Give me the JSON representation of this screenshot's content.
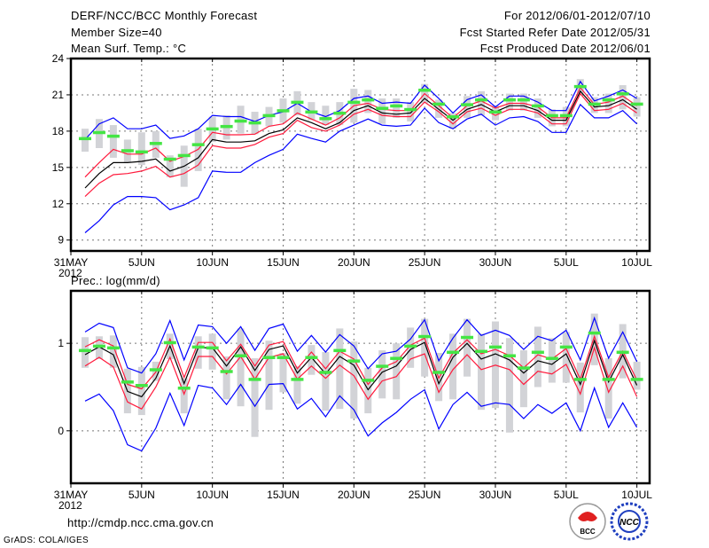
{
  "header": {
    "title": "DERF/NCC/BCC Monthly Forecast",
    "member_size": "Member Size=40",
    "variable": "Mean Surf. Temp.: °C",
    "period": "For 2012/06/01-2012/07/10",
    "start_date": "Fcst Started Refer Date 2012/05/31",
    "produced_date": "Fcst Produced Date 2012/06/01"
  },
  "footer": {
    "url": "http://cmdp.ncc.cma.gov.cn",
    "credit": "GrADS: COLA/IGES",
    "logo_left": "BCC",
    "logo_right": "NCC"
  },
  "colors": {
    "max_min": "#0000ff",
    "quartile": "#ff1a3c",
    "median": "#000000",
    "obs": "#44e544",
    "box": "#d2d3d7"
  },
  "chart_data": [
    {
      "type": "line",
      "title": "Mean Surf. Temp.: °C",
      "ylabel": "°C",
      "ylim": [
        8.1,
        24
      ],
      "xlim": [
        0,
        40.9
      ],
      "yticks": [
        9,
        12,
        15,
        18,
        21,
        24
      ],
      "xticks": [
        {
          "day": 0,
          "label": "31MAY",
          "sub": "2012"
        },
        {
          "day": 5,
          "label": "5JUN"
        },
        {
          "day": 10,
          "label": "10JUN"
        },
        {
          "day": 15,
          "label": "15JUN"
        },
        {
          "day": 20,
          "label": "20JUN"
        },
        {
          "day": 25,
          "label": "25JUN"
        },
        {
          "day": 30,
          "label": "30JUN"
        },
        {
          "day": 35,
          "label": "5JUL"
        },
        {
          "day": 40,
          "label": "10JUL"
        }
      ],
      "grid": true,
      "x_days": [
        1,
        2,
        3,
        4,
        5,
        6,
        7,
        8,
        9,
        10,
        11,
        12,
        13,
        14,
        15,
        16,
        17,
        18,
        19,
        20,
        21,
        22,
        23,
        24,
        25,
        26,
        27,
        28,
        29,
        30,
        31,
        32,
        33,
        34,
        35,
        36,
        37,
        38,
        39,
        40
      ],
      "series": [
        {
          "name": "max",
          "color": "#0000ff",
          "values": [
            17.3,
            18.6,
            19.1,
            18.2,
            18.2,
            18.5,
            17.4,
            17.6,
            18.2,
            19.3,
            19.2,
            19.2,
            18.8,
            19.3,
            19.6,
            20.3,
            19.6,
            19.2,
            19.7,
            20.7,
            20.9,
            20.3,
            20.4,
            20.3,
            21.8,
            20.7,
            19.5,
            20.6,
            21.0,
            20.0,
            20.9,
            20.9,
            20.4,
            19.7,
            19.7,
            22.1,
            20.5,
            20.9,
            21.4,
            20.7
          ]
        },
        {
          "name": "upper",
          "color": "#ff1a3c",
          "values": [
            14.2,
            15.4,
            16.5,
            16.1,
            16.1,
            16.6,
            15.5,
            15.9,
            16.5,
            17.9,
            17.7,
            17.7,
            17.75,
            18.4,
            18.6,
            19.5,
            19.0,
            18.5,
            19.1,
            20.1,
            20.3,
            19.8,
            19.7,
            19.7,
            21.1,
            20.1,
            19.1,
            20.1,
            20.5,
            19.9,
            20.3,
            20.3,
            20.0,
            19.1,
            19.1,
            21.6,
            20.2,
            20.4,
            20.9,
            20.1
          ]
        },
        {
          "name": "median",
          "color": "#000000",
          "values": [
            13.3,
            14.5,
            15.4,
            15.4,
            15.5,
            15.7,
            14.7,
            15.1,
            15.8,
            17.3,
            17.1,
            17.1,
            17.2,
            17.8,
            18.1,
            19.1,
            18.7,
            18.2,
            18.7,
            19.7,
            20.1,
            19.5,
            19.4,
            19.5,
            20.7,
            19.8,
            18.9,
            19.8,
            20.2,
            19.6,
            20.1,
            20.1,
            19.7,
            18.9,
            18.9,
            21.3,
            20.0,
            20.1,
            20.6,
            19.8
          ]
        },
        {
          "name": "lower",
          "color": "#ff1a3c",
          "values": [
            12.6,
            13.7,
            14.4,
            14.5,
            14.7,
            15.1,
            14.2,
            14.5,
            15.2,
            16.8,
            16.6,
            16.6,
            16.9,
            17.5,
            17.8,
            18.9,
            18.3,
            18.0,
            18.5,
            19.4,
            19.8,
            19.3,
            19.2,
            19.2,
            20.4,
            19.6,
            18.6,
            19.6,
            19.9,
            19.3,
            19.8,
            19.8,
            19.5,
            18.6,
            18.6,
            21.1,
            19.7,
            19.8,
            20.3,
            19.5
          ]
        },
        {
          "name": "min",
          "color": "#0000ff",
          "values": [
            9.6,
            10.6,
            11.9,
            12.6,
            12.6,
            12.5,
            11.5,
            11.9,
            12.5,
            14.7,
            14.6,
            14.6,
            15.4,
            16.0,
            16.5,
            17.75,
            17.4,
            17.1,
            18.0,
            18.5,
            19.0,
            18.5,
            18.4,
            18.5,
            19.9,
            18.7,
            18.2,
            19.0,
            19.4,
            18.5,
            19.1,
            19.2,
            18.8,
            17.9,
            17.9,
            20.2,
            19.1,
            19.1,
            19.7,
            18.6
          ]
        }
      ],
      "obs": [
        17.4,
        17.9,
        17.6,
        16.4,
        16.3,
        17.0,
        15.7,
        16.0,
        16.9,
        18.2,
        18.4,
        18.85,
        18.7,
        19.3,
        19.7,
        20.4,
        19.6,
        19.05,
        19.5,
        20.4,
        20.6,
        19.9,
        20.1,
        19.8,
        21.4,
        20.25,
        19.2,
        20.2,
        20.6,
        19.6,
        20.6,
        20.6,
        20.1,
        19.3,
        19.3,
        21.7,
        20.25,
        20.6,
        21.1,
        20.25
      ],
      "box_high": [
        18.2,
        19.0,
        18.5,
        17.3,
        17.9,
        18.0,
        16.0,
        16.8,
        18.2,
        19.2,
        19.3,
        20.1,
        19.6,
        20.0,
        20.7,
        21.3,
        20.4,
        20.1,
        20.4,
        21.5,
        21.4,
        20.7,
        20.7,
        20.4,
        21.9,
        20.6,
        19.5,
        20.9,
        21.3,
        20.1,
        21.1,
        21.1,
        20.7,
        19.8,
        20.0,
        22.3,
        20.8,
        21.1,
        21.8,
        20.8
      ],
      "box_low": [
        16.3,
        16.6,
        15.8,
        15.4,
        15.2,
        15.8,
        14.2,
        13.4,
        14.7,
        17.1,
        17.3,
        17.8,
        17.75,
        18.4,
        18.7,
        19.3,
        18.9,
        18.5,
        18.5,
        18.7,
        19.5,
        18.6,
        19.1,
        18.8,
        20.3,
        19.1,
        18.2,
        19.1,
        19.3,
        18.9,
        19.7,
        19.7,
        19.1,
        18.4,
        18.4,
        21.1,
        19.5,
        19.5,
        19.8,
        19.2
      ]
    },
    {
      "type": "line",
      "title": "Prec.: log(mm/d)",
      "ylabel": "log(mm/d)",
      "ylim": [
        -0.6,
        1.6
      ],
      "xlim": [
        0,
        40.9
      ],
      "yticks": [
        0,
        1
      ],
      "xticks": [
        {
          "day": 0,
          "label": "31MAY",
          "sub": "2012"
        },
        {
          "day": 5,
          "label": "5JUN"
        },
        {
          "day": 10,
          "label": "10JUN"
        },
        {
          "day": 15,
          "label": "15JUN"
        },
        {
          "day": 20,
          "label": "20JUN"
        },
        {
          "day": 25,
          "label": "25JUN"
        },
        {
          "day": 30,
          "label": "30JUN"
        },
        {
          "day": 35,
          "label": "5JUL"
        },
        {
          "day": 40,
          "label": "10JUL"
        }
      ],
      "grid": true,
      "x_days": [
        1,
        2,
        3,
        4,
        5,
        6,
        7,
        8,
        9,
        10,
        11,
        12,
        13,
        14,
        15,
        16,
        17,
        18,
        19,
        20,
        21,
        22,
        23,
        24,
        25,
        26,
        27,
        28,
        29,
        30,
        31,
        32,
        33,
        34,
        35,
        36,
        37,
        38,
        39,
        40
      ],
      "series": [
        {
          "name": "max",
          "color": "#0000ff",
          "values": [
            1.13,
            1.23,
            1.18,
            0.72,
            0.66,
            0.88,
            1.26,
            0.81,
            1.21,
            1.19,
            1.0,
            1.19,
            0.92,
            1.17,
            1.22,
            0.91,
            1.09,
            0.9,
            1.1,
            0.97,
            0.71,
            0.88,
            0.91,
            1.05,
            1.27,
            0.8,
            1.06,
            1.27,
            1.09,
            1.15,
            1.09,
            0.93,
            1.08,
            1.03,
            1.15,
            0.81,
            1.29,
            0.83,
            1.13,
            0.79
          ]
        },
        {
          "name": "upper",
          "color": "#ff1a3c",
          "values": [
            0.96,
            1.04,
            0.97,
            0.53,
            0.48,
            0.67,
            1.05,
            0.61,
            1.01,
            1.01,
            0.8,
            0.99,
            0.74,
            0.98,
            1.02,
            0.71,
            0.9,
            0.71,
            0.91,
            0.82,
            0.53,
            0.72,
            0.79,
            0.98,
            1.06,
            0.6,
            0.89,
            1.04,
            0.88,
            0.93,
            0.86,
            0.72,
            0.87,
            0.82,
            0.94,
            0.59,
            1.08,
            0.61,
            0.91,
            0.58
          ]
        },
        {
          "name": "median",
          "color": "#000000",
          "values": [
            0.87,
            0.96,
            0.87,
            0.45,
            0.39,
            0.6,
            0.97,
            0.54,
            0.95,
            0.95,
            0.74,
            0.96,
            0.69,
            0.93,
            0.97,
            0.66,
            0.84,
            0.65,
            0.85,
            0.75,
            0.47,
            0.67,
            0.74,
            0.93,
            1.01,
            0.54,
            0.84,
            1.0,
            0.82,
            0.88,
            0.81,
            0.66,
            0.8,
            0.76,
            0.88,
            0.53,
            1.03,
            0.56,
            0.87,
            0.52
          ]
        },
        {
          "name": "lower",
          "color": "#ff1a3c",
          "values": [
            0.74,
            0.84,
            0.73,
            0.33,
            0.25,
            0.5,
            0.84,
            0.42,
            0.85,
            0.85,
            0.65,
            0.85,
            0.59,
            0.84,
            0.88,
            0.59,
            0.74,
            0.6,
            0.75,
            0.63,
            0.36,
            0.57,
            0.62,
            0.82,
            0.88,
            0.44,
            0.7,
            0.87,
            0.7,
            0.75,
            0.7,
            0.53,
            0.68,
            0.65,
            0.76,
            0.42,
            0.95,
            0.44,
            0.74,
            0.39
          ]
        },
        {
          "name": "min",
          "color": "#0000ff",
          "values": [
            0.34,
            0.42,
            0.23,
            -0.16,
            -0.23,
            0.03,
            0.43,
            0.06,
            0.52,
            0.49,
            0.3,
            0.53,
            0.28,
            0.53,
            0.54,
            0.25,
            0.37,
            0.16,
            0.4,
            0.24,
            -0.06,
            0.09,
            0.21,
            0.36,
            0.47,
            0.02,
            0.3,
            0.44,
            0.28,
            0.32,
            0.3,
            0.14,
            0.3,
            0.2,
            0.32,
            0.0,
            0.49,
            0.04,
            0.32,
            0.04
          ]
        }
      ],
      "obs": [
        0.92,
        0.97,
        0.95,
        0.56,
        0.52,
        0.7,
        1.01,
        0.49,
        0.96,
        0.95,
        0.68,
        0.86,
        0.59,
        0.84,
        0.84,
        0.59,
        0.84,
        0.67,
        0.92,
        0.8,
        0.58,
        0.74,
        0.83,
        0.97,
        1.08,
        0.67,
        0.9,
        1.07,
        0.91,
        0.96,
        0.86,
        0.72,
        0.9,
        0.83,
        0.96,
        0.59,
        1.12,
        0.59,
        0.9,
        0.59
      ],
      "box_high": [
        1.07,
        1.08,
        1.09,
        0.71,
        0.73,
        0.79,
        1.11,
        0.6,
        1.08,
        1.11,
        0.85,
        1.17,
        0.83,
        1.03,
        0.89,
        0.74,
        0.98,
        0.9,
        1.17,
        1.02,
        0.72,
        0.92,
        1.0,
        1.18,
        1.28,
        0.89,
        1.11,
        1.28,
        1.11,
        1.25,
        1.06,
        0.92,
        1.19,
        1.06,
        1.13,
        0.78,
        1.34,
        0.83,
        1.22,
        0.79
      ],
      "box_low": [
        0.72,
        0.82,
        0.72,
        0.2,
        0.18,
        0.57,
        0.82,
        0.2,
        0.71,
        0.7,
        0.36,
        0.28,
        -0.07,
        0.24,
        0.44,
        0.31,
        0.64,
        0.23,
        0.25,
        0.14,
        0.2,
        0.37,
        0.36,
        0.72,
        0.62,
        0.34,
        0.36,
        0.62,
        0.24,
        0.26,
        -0.02,
        0.27,
        0.5,
        0.55,
        0.55,
        0.21,
        0.75,
        0.14,
        0.6,
        0.47
      ]
    }
  ]
}
